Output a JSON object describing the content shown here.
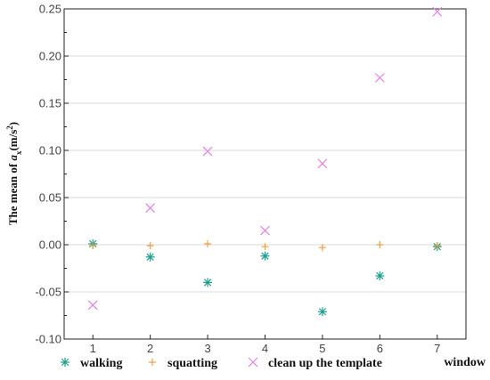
{
  "chart_data": {
    "type": "scatter",
    "x": [
      1,
      2,
      3,
      4,
      5,
      6,
      7
    ],
    "x_ticks": [
      "1",
      "2",
      "3",
      "4",
      "5",
      "6",
      "7"
    ],
    "y_ticks": [
      "-0.10",
      "-0.05",
      "0.00",
      "0.05",
      "0.10",
      "0.15",
      "0.20",
      "0.25"
    ],
    "y_tick_values": [
      -0.1,
      -0.05,
      0.0,
      0.05,
      0.1,
      0.15,
      0.2,
      0.25
    ],
    "xlim": [
      0.5,
      7.5
    ],
    "ylim": [
      -0.1,
      0.25
    ],
    "xlabel": "window",
    "ylabel": {
      "prefix": "The mean of ",
      "var": "a",
      "sub": "x",
      "unit_open": "(m/s",
      "sup": "2",
      "unit_close": ")"
    },
    "grid": "horizontal",
    "legend_position": "bottom",
    "series": [
      {
        "name": "walking",
        "marker": "asterisk",
        "color": "#1a9e8f",
        "values": [
          0.001,
          -0.013,
          -0.04,
          -0.012,
          -0.071,
          -0.033,
          -0.002
        ]
      },
      {
        "name": "squatting",
        "marker": "plus",
        "color": "#f0a040",
        "values": [
          -0.001,
          -0.001,
          0.001,
          -0.002,
          -0.003,
          0.0,
          -0.001
        ]
      },
      {
        "name": "clean up the template",
        "marker": "cross",
        "color": "#e87ee6",
        "values": [
          -0.064,
          0.039,
          0.099,
          0.015,
          0.086,
          0.177,
          0.247
        ]
      }
    ]
  }
}
